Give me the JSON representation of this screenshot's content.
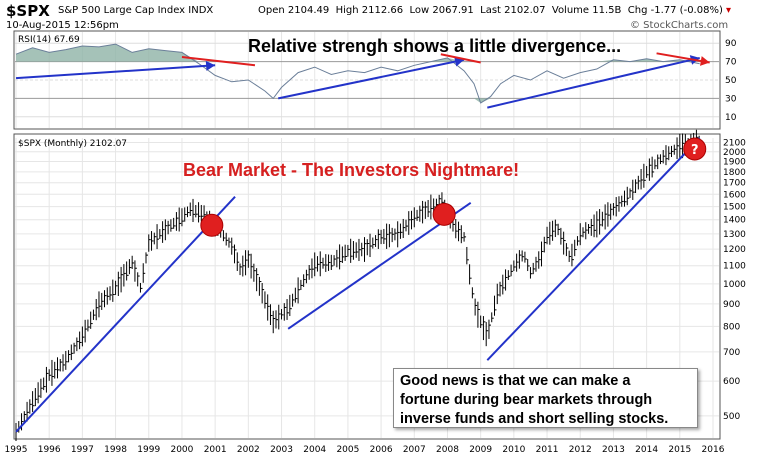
{
  "header": {
    "ticker": "$SPX",
    "name": "S&P 500 Large Cap Index",
    "exchange": "INDX",
    "date": "10-Aug-2015 12:56pm",
    "open_label": "Open",
    "open": "2104.49",
    "high_label": "High",
    "high": "2112.66",
    "low_label": "Low",
    "low": "2067.91",
    "last_label": "Last",
    "last": "2102.07",
    "volume_label": "Volume",
    "volume": "11.5B",
    "chg_label": "Chg",
    "chg": "-1.77 (-0.08%)",
    "logo": "© StockCharts.com"
  },
  "rsi_panel": {
    "label": "RSI(14) 67.69",
    "title": "Relative strengh shows a little divergence...",
    "ticks": [
      "90",
      "70",
      "50",
      "30",
      "10"
    ]
  },
  "price_panel": {
    "label": "$SPX (Monthly) 2102.07",
    "title": "Bear Market - The Investors Nightmare!",
    "note_lines": [
      "Good news is that we can make a",
      "fortune during bear markets through",
      "inverse funds and short selling stocks."
    ]
  },
  "chart_data": {
    "type": "line",
    "title": "Bear Market - The Investors Nightmare!",
    "x_ticks": [
      "1995",
      "1996",
      "1997",
      "1998",
      "1999",
      "2000",
      "2001",
      "2002",
      "2003",
      "2004",
      "2005",
      "2006",
      "2007",
      "2008",
      "2009",
      "2010",
      "2011",
      "2012",
      "2013",
      "2014",
      "2015",
      "2016"
    ],
    "y_ticks": [
      500,
      600,
      700,
      800,
      900,
      1000,
      1100,
      1200,
      1300,
      1400,
      1500,
      1600,
      1700,
      1800,
      1900,
      2000,
      2100
    ],
    "y_scale": "log",
    "ylim": [
      450,
      2150
    ],
    "series": [
      {
        "x": [
          1995.0,
          1995.5,
          1996.0,
          1996.5,
          1997.0,
          1997.5,
          1998.0,
          1998.5,
          1998.75,
          1999.0,
          1999.5,
          2000.0,
          2000.25,
          2000.7,
          2001.0,
          2001.5,
          2001.75,
          2002.0,
          2002.5,
          2002.75,
          2003.2,
          2003.6,
          2004.0,
          2004.5,
          2005.0,
          2005.5,
          2006.0,
          2006.5,
          2007.0,
          2007.5,
          2007.8,
          2008.2,
          2008.5,
          2008.8,
          2009.0,
          2009.2,
          2009.5,
          2010.0,
          2010.3,
          2010.5,
          2010.8,
          2011.0,
          2011.3,
          2011.7,
          2012.0,
          2012.5,
          2013.0,
          2013.5,
          2014.0,
          2014.5,
          2015.0,
          2015.4,
          2015.6
        ],
        "y": [
          460,
          540,
          620,
          670,
          760,
          900,
          980,
          1120,
          980,
          1240,
          1330,
          1420,
          1480,
          1440,
          1360,
          1220,
          1080,
          1140,
          920,
          820,
          880,
          1000,
          1110,
          1120,
          1190,
          1200,
          1280,
          1300,
          1420,
          1500,
          1540,
          1350,
          1280,
          900,
          820,
          760,
          950,
          1100,
          1170,
          1060,
          1150,
          1290,
          1350,
          1140,
          1300,
          1370,
          1480,
          1610,
          1800,
          1950,
          2060,
          2100,
          2102
        ]
      }
    ],
    "rsi": {
      "ylim": [
        0,
        100
      ],
      "x": [
        1995.0,
        1995.5,
        1996.0,
        1996.5,
        1997.0,
        1997.5,
        1998.0,
        1998.5,
        1999.0,
        1999.5,
        2000.0,
        2000.5,
        2001.0,
        2001.5,
        2002.0,
        2002.5,
        2002.75,
        2003.0,
        2003.5,
        2004.0,
        2004.5,
        2005.0,
        2005.5,
        2006.0,
        2006.5,
        2007.0,
        2007.5,
        2008.0,
        2008.5,
        2008.8,
        2009.0,
        2009.3,
        2009.6,
        2010.0,
        2010.5,
        2011.0,
        2011.5,
        2012.0,
        2012.5,
        2013.0,
        2013.5,
        2014.0,
        2014.5,
        2015.0,
        2015.6
      ],
      "y": [
        78,
        85,
        80,
        83,
        87,
        86,
        89,
        80,
        84,
        82,
        80,
        68,
        55,
        48,
        50,
        38,
        30,
        42,
        58,
        64,
        56,
        60,
        58,
        64,
        60,
        66,
        70,
        74,
        60,
        46,
        25,
        32,
        46,
        55,
        50,
        60,
        52,
        58,
        62,
        72,
        70,
        73,
        70,
        72,
        67.69
      ]
    },
    "trendlines": {
      "price": [
        [
          1995.0,
          460,
          2001.6,
          1580
        ],
        [
          2003.2,
          790,
          2008.7,
          1530
        ],
        [
          2009.2,
          670,
          2015.6,
          2150
        ]
      ],
      "rsi_blue": [
        [
          1995.0,
          52,
          2001.0,
          66
        ],
        [
          2002.9,
          30,
          2008.5,
          72
        ],
        [
          2009.2,
          20,
          2015.6,
          74
        ]
      ],
      "rsi_red": [
        [
          2000.0,
          75,
          2002.2,
          66
        ],
        [
          2007.8,
          78,
          2009.0,
          69
        ],
        [
          2014.3,
          79,
          2015.9,
          69
        ]
      ]
    }
  }
}
